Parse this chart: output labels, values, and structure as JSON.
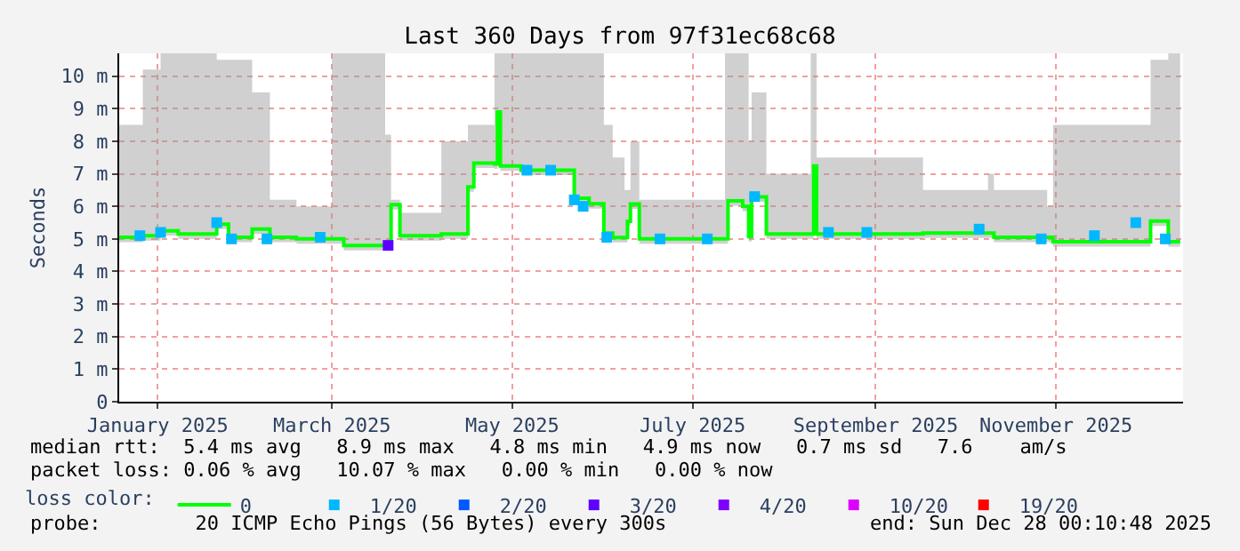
{
  "chart_data": {
    "type": "step",
    "title": "Last 360 Days from 97f31ec68c68",
    "ylabel": "Seconds",
    "legend_title": "loss color:",
    "x": [
      "2025-01-02",
      "2025-01-10",
      "2025-01-16",
      "2025-01-22",
      "2025-02-04",
      "2025-02-08",
      "2025-02-16",
      "2025-02-22",
      "2025-03-03",
      "2025-03-15",
      "2025-03-19",
      "2025-04-02",
      "2025-04-04",
      "2025-04-07",
      "2025-04-21",
      "2025-04-30",
      "2025-05-02",
      "2025-05-09",
      "2025-05-10",
      "2025-05-11",
      "2025-05-18",
      "2025-06-04",
      "2025-06-05",
      "2025-06-10",
      "2025-06-15",
      "2025-06-18",
      "2025-06-22",
      "2025-06-23",
      "2025-06-24",
      "2025-06-27",
      "2025-07-26",
      "2025-07-27",
      "2025-08-01",
      "2025-08-03",
      "2025-08-04",
      "2025-08-07",
      "2025-08-09",
      "2025-08-24",
      "2025-08-25",
      "2025-08-26",
      "2025-10-01",
      "2025-10-23",
      "2025-10-25",
      "2025-11-12",
      "2025-11-14",
      "2025-12-17",
      "2025-12-23",
      "2025-12-27"
    ],
    "series": [
      {
        "name": "0",
        "color": "#00ff00",
        "values": [
          5.05,
          5.1,
          5.25,
          5.15,
          5.45,
          5.05,
          5.3,
          5.05,
          5.0,
          5.0,
          4.8,
          4.85,
          6.05,
          5.1,
          5.15,
          6.6,
          7.33,
          7.3,
          8.9,
          7.24,
          7.11,
          7.11,
          6.25,
          6.08,
          5.18,
          5.04,
          5.04,
          5.54,
          6.07,
          5.0,
          5.0,
          6.17,
          6.0,
          5.07,
          6.29,
          6.29,
          5.15,
          5.15,
          7.24,
          5.15,
          5.18,
          5.18,
          5.05,
          5.05,
          4.91,
          5.55,
          4.91,
          4.91
        ],
        "lower": [
          4.9,
          4.95,
          5.1,
          5.0,
          5.3,
          4.9,
          5.15,
          4.9,
          4.85,
          4.85,
          4.65,
          4.7,
          5.9,
          4.95,
          5.0,
          6.45,
          7.18,
          7.15,
          8.75,
          7.09,
          6.96,
          6.96,
          6.1,
          5.93,
          5.03,
          4.89,
          4.89,
          5.39,
          5.92,
          4.85,
          4.85,
          6.02,
          5.85,
          4.92,
          6.14,
          6.14,
          5.0,
          5.0,
          7.09,
          5.0,
          5.03,
          5.03,
          4.9,
          4.9,
          4.76,
          5.4,
          4.76,
          4.76
        ],
        "upper": [
          8.5,
          10.2,
          10.7,
          10.7,
          10.5,
          10.5,
          9.5,
          6.2,
          6.0,
          10.7,
          10.7,
          8.2,
          6.2,
          5.8,
          8.0,
          8.5,
          8.5,
          10.7,
          10.7,
          10.7,
          10.7,
          10.7,
          10.7,
          10.7,
          8.5,
          7.5,
          6.5,
          6.5,
          8.0,
          6.2,
          10.7,
          10.7,
          10.7,
          8.0,
          9.5,
          9.5,
          7.0,
          10.7,
          10.7,
          7.5,
          6.5,
          7.0,
          6.5,
          6.0,
          8.5,
          10.5,
          10.7,
          9.5
        ]
      },
      {
        "name": "1/20",
        "type": "scatter",
        "marker": "square",
        "color": "#00b8ff",
        "x": [
          "2025-01-09",
          "2025-01-16",
          "2025-02-04",
          "2025-02-09",
          "2025-02-21",
          "2025-03-11",
          "2025-05-20",
          "2025-05-28",
          "2025-06-05",
          "2025-06-08",
          "2025-06-16",
          "2025-07-04",
          "2025-07-20",
          "2025-08-05",
          "2025-08-30",
          "2025-09-12",
          "2025-10-20",
          "2025-11-10",
          "2025-11-28",
          "2025-12-12",
          "2025-12-22"
        ],
        "values": [
          5.1,
          5.2,
          5.5,
          5.0,
          5.0,
          5.05,
          7.11,
          7.11,
          6.2,
          6.0,
          5.05,
          5.0,
          5.0,
          6.3,
          5.2,
          5.2,
          5.3,
          5.0,
          5.1,
          5.5,
          5.0
        ]
      },
      {
        "name": "2/20",
        "type": "scatter",
        "marker": "square",
        "color": "#0059ff",
        "values": [
          null,
          null,
          null,
          null,
          null,
          null,
          null,
          null,
          null,
          null,
          null,
          null,
          null,
          null,
          null,
          null,
          null,
          null,
          null,
          null,
          null,
          null,
          null,
          null,
          null,
          null,
          null,
          null,
          null,
          null,
          null,
          null,
          null,
          null,
          null,
          null,
          null,
          null,
          null,
          null,
          null,
          null,
          null,
          null,
          null,
          null,
          null,
          null
        ]
      },
      {
        "name": "3/20",
        "type": "scatter",
        "marker": "square",
        "color": "#5e00ff",
        "x": [
          "2025-04-03"
        ],
        "values": [
          4.8
        ]
      },
      {
        "name": "4/20",
        "type": "scatter",
        "marker": "square",
        "color": "#7e00ff",
        "values": [
          null,
          null,
          null,
          null,
          null,
          null,
          null,
          null,
          null,
          null,
          null,
          null,
          null,
          null,
          null,
          null,
          null,
          null,
          null,
          null,
          null,
          null,
          null,
          null,
          null,
          null,
          null,
          null,
          null,
          null,
          null,
          null,
          null,
          null,
          null,
          null,
          null,
          null,
          null,
          null,
          null,
          null,
          null,
          null,
          null,
          null,
          null,
          null
        ]
      },
      {
        "name": "10/20",
        "type": "scatter",
        "marker": "square",
        "color": "#dd00ff",
        "values": [
          null,
          null,
          null,
          null,
          null,
          null,
          null,
          null,
          null,
          null,
          null,
          null,
          null,
          null,
          null,
          null,
          null,
          null,
          null,
          null,
          null,
          null,
          null,
          null,
          null,
          null,
          null,
          null,
          null,
          null,
          null,
          null,
          null,
          null,
          null,
          null,
          null,
          null,
          null,
          null,
          null,
          null,
          null,
          null,
          null,
          null,
          null,
          null
        ]
      },
      {
        "name": "19/20",
        "type": "scatter",
        "marker": "square",
        "color": "#ff0000",
        "values": [
          null,
          null,
          null,
          null,
          null,
          null,
          null,
          null,
          null,
          null,
          null,
          null,
          null,
          null,
          null,
          null,
          null,
          null,
          null,
          null,
          null,
          null,
          null,
          null,
          null,
          null,
          null,
          null,
          null,
          null,
          null,
          null,
          null,
          null,
          null,
          null,
          null,
          null,
          null,
          null,
          null,
          null,
          null,
          null,
          null,
          null,
          null,
          null
        ]
      }
    ],
    "xlim": [
      "2025-01-02",
      "2025-12-28"
    ],
    "xticks": [
      {
        "value": "2025-01-15",
        "label": "January 2025"
      },
      {
        "value": "2025-03-15",
        "label": "March 2025"
      },
      {
        "value": "2025-05-15",
        "label": "May 2025"
      },
      {
        "value": "2025-07-15",
        "label": "July 2025"
      },
      {
        "value": "2025-09-15",
        "label": "September 2025"
      },
      {
        "value": "2025-11-15",
        "label": "November 2025"
      }
    ],
    "ylim": [
      0,
      10.7
    ],
    "yticks": [
      0,
      {
        "value": 1,
        "label": "1 m"
      },
      {
        "value": 2,
        "label": "2 m"
      },
      {
        "value": 3,
        "label": "3 m"
      },
      {
        "value": 4,
        "label": "4 m"
      },
      {
        "value": 5,
        "label": "5 m"
      },
      {
        "value": 6,
        "label": "6 m"
      },
      {
        "value": 7,
        "label": "7 m"
      },
      {
        "value": 8,
        "label": "8 m"
      },
      {
        "value": 9,
        "label": "9 m"
      },
      {
        "value": 10,
        "label": "10 m"
      }
    ],
    "grid": true,
    "legend": "bottom",
    "annotations": [
      "median rtt:  5.4 ms avg   8.9 ms max   4.8 ms min   4.9 ms now   0.7 ms sd   7.6    am/s",
      "packet loss: 0.06 % avg   10.07 % max   0.00 % min   0.00 % now",
      "probe:        20 ICMP Echo Pings (56 Bytes) every 300s",
      "end: Sun Dec 28 00:10:48 2025"
    ]
  }
}
